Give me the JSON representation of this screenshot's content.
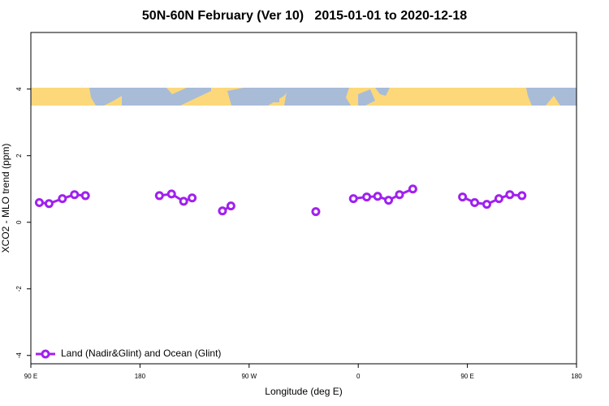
{
  "chart_data": {
    "type": "line",
    "title": "50N-60N February (Ver 10)   2015-01-01 to 2020-12-18",
    "x_label": "Longitude (deg E)",
    "y_label": "XCO2 - MLO trend (ppm)",
    "xlim": [
      90,
      540
    ],
    "ylim": [
      -4.25,
      5.7
    ],
    "xticks": [
      {
        "value": 90,
        "label": "90 E"
      },
      {
        "value": 180,
        "label": "180"
      },
      {
        "value": 270,
        "label": "90 W"
      },
      {
        "value": 360,
        "label": "0"
      },
      {
        "value": 450,
        "label": "90 E"
      },
      {
        "value": 540,
        "label": "180"
      }
    ],
    "yticks": [
      -4,
      -2,
      0,
      2,
      4
    ],
    "legend_position": "bottom-left",
    "series": [
      {
        "name": "Land (Nadir&Glint) and Ocean (Glint)",
        "color": "#a020f0",
        "x": [
          97,
          105,
          116,
          126,
          135,
          null,
          196,
          206,
          216,
          223,
          null,
          248,
          255,
          null,
          325,
          null,
          356,
          367,
          376,
          385,
          394,
          405,
          null,
          446,
          456,
          466,
          476,
          485,
          495
        ],
        "values": [
          0.59,
          0.56,
          0.71,
          0.83,
          0.8,
          null,
          0.8,
          0.85,
          0.63,
          0.73,
          null,
          0.34,
          0.49,
          null,
          0.32,
          null,
          0.71,
          0.76,
          0.78,
          0.66,
          0.83,
          1.0,
          null,
          0.76,
          0.59,
          0.54,
          0.71,
          0.83,
          0.8
        ]
      }
    ]
  }
}
